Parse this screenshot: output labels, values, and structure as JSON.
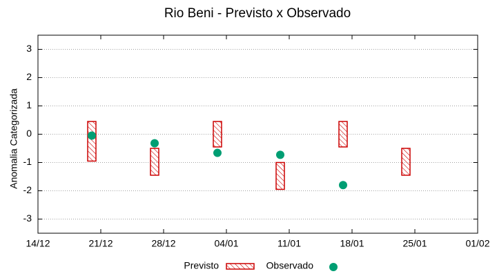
{
  "chart_data": {
    "type": "range-dot",
    "title": "Rio Beni - Previsto x Observado",
    "y_label": "Anomalia Categorizada",
    "x": [
      "20/12",
      "27/12",
      "03/01",
      "10/01",
      "17/01",
      "24/01"
    ],
    "xlim": [
      "14/12",
      "01/02"
    ],
    "xticks": [
      "14/12",
      "21/12",
      "28/12",
      "04/01",
      "11/01",
      "18/01",
      "25/01",
      "01/02"
    ],
    "ylim": [
      -3.5,
      3.5
    ],
    "yticks": [
      -3,
      -2,
      -1,
      0,
      1,
      2,
      3
    ],
    "grid": true,
    "legend": "bottom",
    "series": [
      {
        "name": "Previsto",
        "color": "#cc0000",
        "kind": "range",
        "low": [
          -0.95,
          -1.45,
          -0.45,
          -1.95,
          -0.45,
          -1.45
        ],
        "high": [
          0.45,
          -0.5,
          0.45,
          -1.0,
          0.45,
          -0.5
        ]
      },
      {
        "name": "Observado",
        "color": "#009e73",
        "kind": "point",
        "values": [
          -0.05,
          -0.32,
          -0.66,
          -0.73,
          -1.8,
          null
        ]
      }
    ]
  }
}
